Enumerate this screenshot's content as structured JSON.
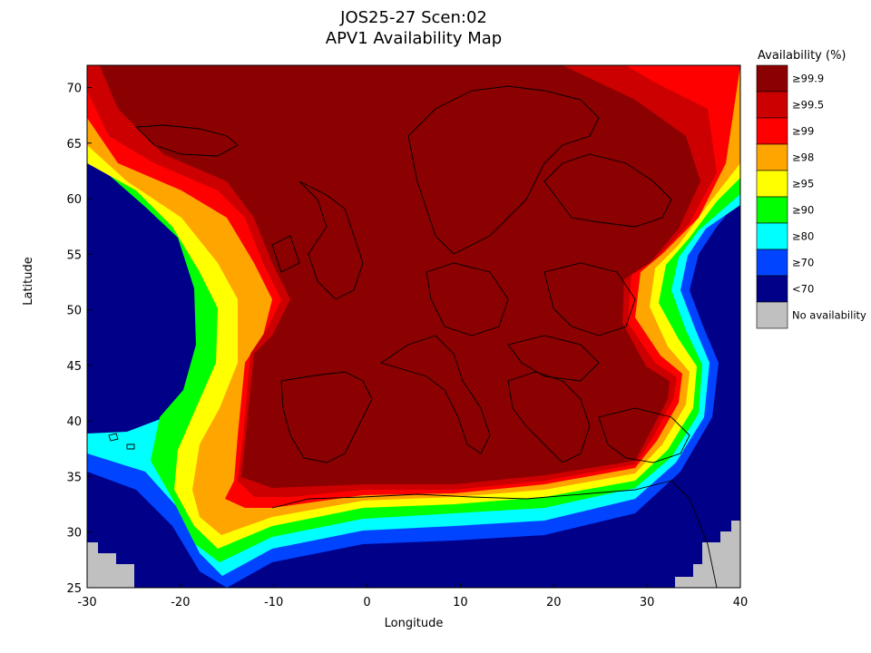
{
  "chart_data": {
    "type": "heatmap",
    "title": "JOS25-27 Scen:02",
    "subtitle": "APV1 Availability Map",
    "xlabel": "Longitude",
    "ylabel": "Latitude",
    "xlim": [
      -30,
      40
    ],
    "ylim": [
      25,
      72
    ],
    "x_ticks": [
      -30,
      -20,
      -10,
      0,
      10,
      20,
      30,
      40
    ],
    "y_ticks": [
      25,
      30,
      35,
      40,
      45,
      50,
      55,
      60,
      65,
      70
    ],
    "legend": {
      "title": "Availability (%)",
      "placement": "right",
      "entries": [
        {
          "label": "≥99.9",
          "color": "#8b0000"
        },
        {
          "label": "≥99.5",
          "color": "#cc0000"
        },
        {
          "label": "≥99",
          "color": "#ff0000"
        },
        {
          "label": "≥98",
          "color": "#ffa500"
        },
        {
          "label": "≥95",
          "color": "#ffff00"
        },
        {
          "label": "≥90",
          "color": "#00ff00"
        },
        {
          "label": "≥80",
          "color": "#00ffff"
        },
        {
          "label": "≥70",
          "color": "#0044ff"
        },
        {
          "label": "<70",
          "color": "#000088"
        },
        {
          "label": "No availability",
          "color": "#c0c0c0"
        }
      ]
    },
    "grid": false
  }
}
